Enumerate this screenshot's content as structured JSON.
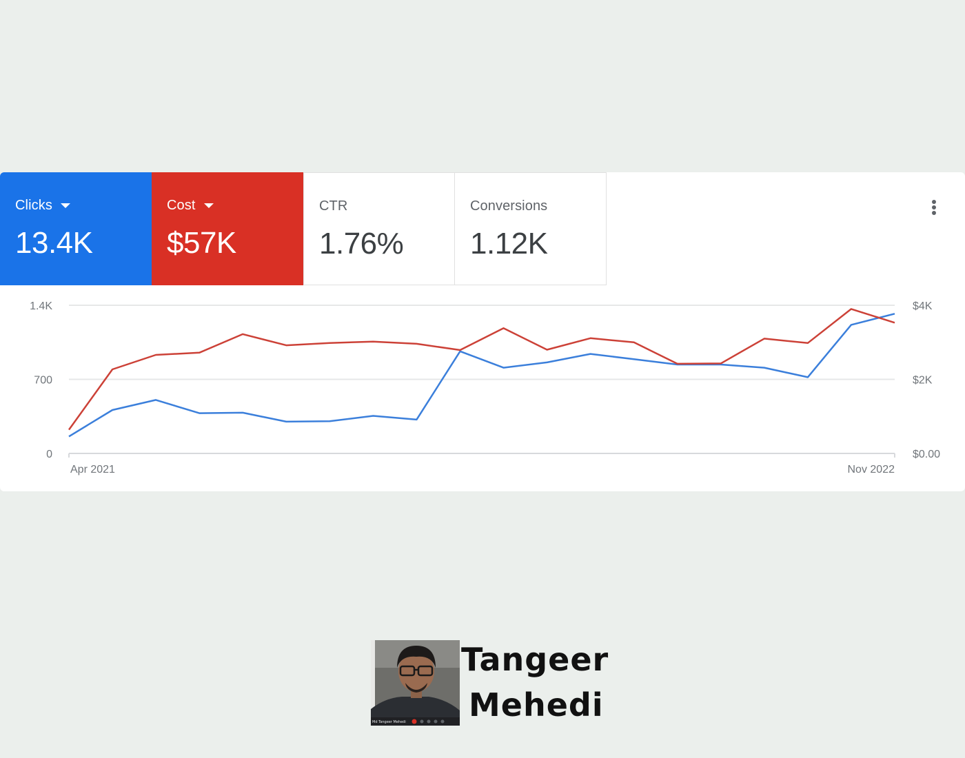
{
  "metrics": [
    {
      "label": "Clicks",
      "value": "13.4K",
      "color": "#1a73e8",
      "dropdown": true
    },
    {
      "label": "Cost",
      "value": "$57K",
      "color": "#d93025",
      "dropdown": true
    },
    {
      "label": "CTR",
      "value": "1.76%",
      "dropdown": false
    },
    {
      "label": "Conversions",
      "value": "1.12K",
      "dropdown": false
    }
  ],
  "menu_icon": "more-vert-icon",
  "chart_data": {
    "type": "line",
    "x": [
      1,
      2,
      3,
      4,
      5,
      6,
      7,
      8,
      9,
      10,
      11,
      12,
      13,
      14,
      15,
      16,
      17,
      18,
      19,
      20
    ],
    "series": [
      {
        "name": "Clicks",
        "axis": "left",
        "color": "#3b7fdb",
        "values": [
          160,
          410,
          505,
          380,
          385,
          300,
          305,
          355,
          320,
          965,
          810,
          860,
          940,
          890,
          840,
          840,
          810,
          720,
          1215,
          1320
        ]
      },
      {
        "name": "Cost",
        "axis": "right",
        "color": "#cc4137",
        "values": [
          640,
          2270,
          2660,
          2720,
          3220,
          2920,
          2980,
          3020,
          2960,
          2790,
          3380,
          2800,
          3110,
          3000,
          2420,
          2430,
          3100,
          2980,
          3900,
          3530
        ]
      }
    ],
    "ylim_left": [
      0,
      1400
    ],
    "ylim_right": [
      0,
      4000
    ],
    "y_ticks_left": [
      "0",
      "700",
      "1.4K"
    ],
    "y_ticks_right": [
      "$0.00",
      "$2K",
      "$4K"
    ],
    "x_tick_labels": [
      "Apr 2021",
      "Nov 2022"
    ],
    "grid": true
  },
  "footer": {
    "name_line1": "Tangeer",
    "name_line2": "Mehedi",
    "photo_caption": "Md Tangeer Mehedi"
  }
}
